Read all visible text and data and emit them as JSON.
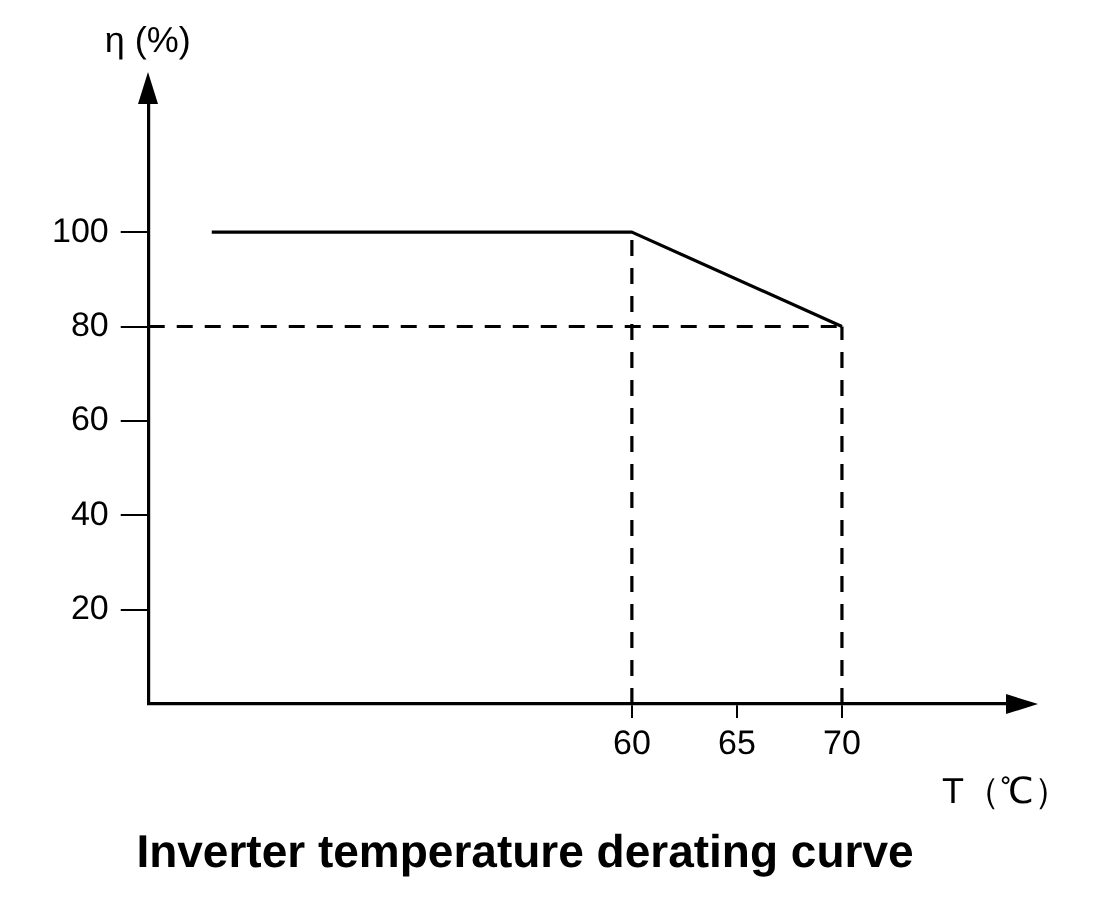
{
  "chart_data": {
    "type": "line",
    "title": "Inverter temperature derating curve",
    "xlabel": "T（℃）",
    "ylabel": "η (%)",
    "xlim": [
      37,
      78
    ],
    "xticks": [
      60,
      65,
      70
    ],
    "ylim": [
      0,
      128
    ],
    "yticks": [
      20,
      40,
      60,
      80,
      100
    ],
    "grid": false,
    "legend": false,
    "marker": "none",
    "series": [
      {
        "color": "#000000",
        "x": [
          40,
          60,
          70
        ],
        "values": [
          100,
          100,
          80
        ],
        "line_style": "solid"
      },
      {
        "color": "#000000",
        "x": [
          60,
          60
        ],
        "values": [
          0,
          100
        ],
        "line_style": "dashed"
      },
      {
        "color": "#000000",
        "x": [
          70,
          70
        ],
        "values": [
          0,
          80
        ],
        "line_style": "dashed"
      },
      {
        "color": "#000000",
        "x": [
          37,
          70
        ],
        "values": [
          80,
          80
        ],
        "line_style": "dashed"
      }
    ]
  }
}
